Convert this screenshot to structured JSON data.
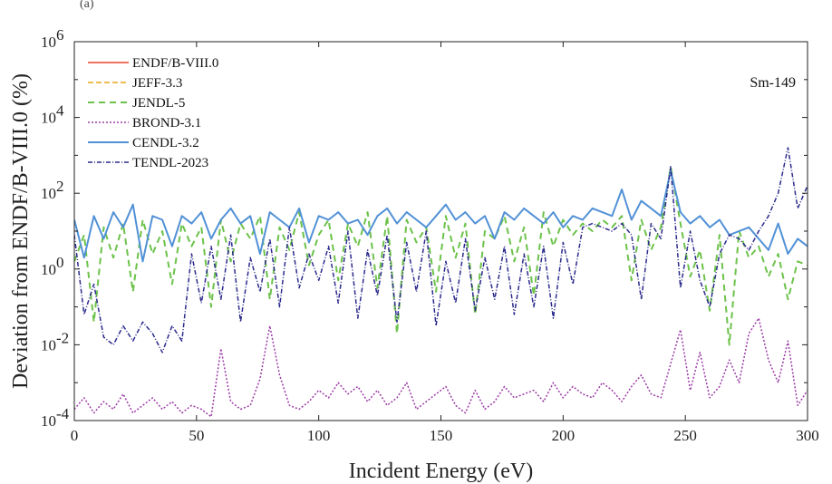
{
  "chart_data": {
    "type": "line",
    "panel_label": "(a)",
    "annotation": "Sm-149",
    "xlabel": "Incident Energy (eV)",
    "ylabel": "Deviation from ENDF/B-VIII.0 (%)",
    "xlim": [
      0,
      300
    ],
    "ylim_log10": [
      -4,
      6
    ],
    "yscale": "log",
    "x_ticks": [
      0,
      50,
      100,
      150,
      200,
      250,
      300
    ],
    "x_tick_labels": [
      "0",
      "50",
      "100",
      "150",
      "200",
      "250",
      "300"
    ],
    "y_ticks_log10": [
      -4,
      -2,
      0,
      2,
      4,
      6
    ],
    "y_tick_labels": [
      {
        "base": "10",
        "exp": "-4"
      },
      {
        "base": "10",
        "exp": "-2"
      },
      {
        "base": "10",
        "exp": "0"
      },
      {
        "base": "10",
        "exp": "2"
      },
      {
        "base": "10",
        "exp": "4"
      },
      {
        "base": "10",
        "exp": "6"
      }
    ],
    "legend_position": "top-left",
    "series": [
      {
        "name": "ENDF/B-VIII.0",
        "color": "#e8432e",
        "dash": "solid",
        "width": 1.5,
        "x": [],
        "y_log10": []
      },
      {
        "name": "JEFF-3.3",
        "color": "#e6a817",
        "dash": "6,3",
        "width": 1.5,
        "x": [],
        "y_log10": []
      },
      {
        "name": "JENDL-5",
        "color": "#6cc24a",
        "dash": "7,5",
        "width": 2,
        "x": [
          0,
          4,
          8,
          12,
          16,
          20,
          24,
          28,
          32,
          36,
          40,
          44,
          48,
          52,
          56,
          60,
          64,
          68,
          72,
          76,
          80,
          84,
          88,
          92,
          96,
          100,
          104,
          108,
          112,
          116,
          120,
          124,
          128,
          132,
          136,
          140,
          144,
          148,
          152,
          156,
          160,
          164,
          168,
          172,
          176,
          180,
          184,
          188,
          192,
          196,
          200,
          204,
          208,
          212,
          216,
          220,
          224,
          228,
          232,
          236,
          240,
          244,
          248,
          252,
          256,
          260,
          264,
          268,
          272,
          276,
          280,
          284,
          288,
          292,
          296,
          300
        ],
        "y_log10": [
          0.2,
          0.9,
          -1.4,
          1.1,
          0.3,
          1.2,
          -0.6,
          1.3,
          0.4,
          1.0,
          -0.4,
          1.2,
          0.6,
          1.1,
          -1.0,
          1.3,
          0.2,
          1.2,
          0.8,
          1.4,
          -0.8,
          1.1,
          0.5,
          1.5,
          0.1,
          0.9,
          1.3,
          -0.3,
          1.2,
          0.6,
          1.5,
          -0.5,
          1.4,
          -1.7,
          1.3,
          0.7,
          1.1,
          -0.6,
          1.4,
          0.3,
          1.2,
          -1.2,
          1.0,
          0.8,
          1.4,
          0.2,
          1.1,
          -0.7,
          1.5,
          0.6,
          1.3,
          0.9,
          1.2,
          1.0,
          1.3,
          1.1,
          1.4,
          -0.3,
          1.3,
          0.5,
          1.1,
          2.7,
          1.2,
          -0.2,
          0.5,
          -1.1,
          0.9,
          -2.0,
          1.0,
          0.3,
          0.6,
          -0.2,
          0.4,
          -0.8,
          0.2,
          0.1
        ]
      },
      {
        "name": "BROND-3.1",
        "color": "#9b3ba6",
        "dash": "2,2",
        "width": 1.5,
        "x": [
          0,
          4,
          8,
          12,
          16,
          20,
          24,
          28,
          32,
          36,
          40,
          44,
          48,
          52,
          56,
          60,
          64,
          68,
          72,
          76,
          80,
          84,
          88,
          92,
          96,
          100,
          104,
          108,
          112,
          116,
          120,
          124,
          128,
          132,
          136,
          140,
          144,
          148,
          152,
          156,
          160,
          164,
          168,
          172,
          176,
          180,
          184,
          188,
          192,
          196,
          200,
          204,
          208,
          212,
          216,
          220,
          224,
          228,
          232,
          236,
          240,
          244,
          248,
          252,
          256,
          260,
          264,
          268,
          272,
          276,
          280,
          284,
          288,
          292,
          296,
          300
        ],
        "y_log10": [
          -3.7,
          -3.4,
          -3.8,
          -3.5,
          -3.7,
          -3.3,
          -3.8,
          -3.6,
          -3.4,
          -3.7,
          -3.5,
          -3.8,
          -3.6,
          -3.7,
          -3.9,
          -2.1,
          -3.5,
          -3.7,
          -3.6,
          -2.9,
          -1.5,
          -2.8,
          -3.6,
          -3.7,
          -3.5,
          -3.2,
          -3.4,
          -3.0,
          -3.3,
          -3.1,
          -3.5,
          -3.2,
          -3.6,
          -3.4,
          -3.0,
          -3.7,
          -3.5,
          -3.3,
          -3.1,
          -3.6,
          -3.8,
          -3.2,
          -3.7,
          -3.5,
          -3.1,
          -3.4,
          -3.3,
          -3.2,
          -3.5,
          -3.0,
          -3.4,
          -3.1,
          -3.3,
          -3.4,
          -3.0,
          -3.2,
          -3.5,
          -3.1,
          -2.8,
          -3.3,
          -3.4,
          -2.5,
          -1.6,
          -3.2,
          -2.2,
          -3.4,
          -3.1,
          -2.4,
          -3.0,
          -1.7,
          -1.3,
          -2.4,
          -3.0,
          -1.9,
          -3.6,
          -3.2
        ]
      },
      {
        "name": "CENDL-3.2",
        "color": "#5191d6",
        "dash": "solid",
        "width": 2,
        "x": [
          0,
          4,
          8,
          12,
          16,
          20,
          24,
          28,
          32,
          36,
          40,
          44,
          48,
          52,
          56,
          60,
          64,
          68,
          72,
          76,
          80,
          84,
          88,
          92,
          96,
          100,
          104,
          108,
          112,
          116,
          120,
          124,
          128,
          132,
          136,
          140,
          144,
          148,
          152,
          156,
          160,
          164,
          168,
          172,
          176,
          180,
          184,
          188,
          192,
          196,
          200,
          204,
          208,
          212,
          216,
          220,
          224,
          228,
          232,
          236,
          240,
          244,
          248,
          252,
          256,
          260,
          264,
          268,
          272,
          276,
          280,
          284,
          288,
          292,
          296,
          300
        ],
        "y_log10": [
          1.3,
          0.3,
          1.4,
          0.8,
          1.5,
          1.1,
          1.7,
          0.2,
          1.4,
          1.3,
          0.6,
          1.4,
          1.2,
          1.5,
          0.8,
          1.3,
          1.6,
          1.2,
          1.4,
          0.4,
          1.5,
          1.3,
          1.1,
          1.6,
          0.7,
          1.4,
          1.3,
          1.5,
          1.2,
          1.3,
          0.9,
          1.4,
          1.6,
          1.2,
          1.5,
          1.3,
          1.1,
          1.4,
          1.7,
          1.3,
          1.5,
          1.2,
          1.4,
          0.8,
          1.5,
          1.3,
          1.6,
          1.4,
          1.2,
          1.5,
          1.1,
          1.4,
          1.3,
          1.6,
          1.5,
          1.4,
          2.1,
          1.3,
          1.8,
          1.6,
          1.4,
          2.6,
          1.5,
          1.2,
          1.4,
          1.1,
          1.3,
          0.9,
          1.0,
          1.1,
          0.8,
          0.5,
          1.2,
          0.4,
          0.8,
          0.6
        ]
      },
      {
        "name": "TENDL-2023",
        "color": "#2c2b8c",
        "dash": "5,2,1,2",
        "width": 1.5,
        "x": [
          0,
          4,
          8,
          12,
          16,
          20,
          24,
          28,
          32,
          36,
          40,
          44,
          48,
          52,
          56,
          60,
          64,
          68,
          72,
          76,
          80,
          84,
          88,
          92,
          96,
          100,
          104,
          108,
          112,
          116,
          120,
          124,
          128,
          132,
          136,
          140,
          144,
          148,
          152,
          156,
          160,
          164,
          168,
          172,
          176,
          180,
          184,
          188,
          192,
          196,
          200,
          204,
          208,
          212,
          216,
          220,
          224,
          228,
          232,
          236,
          240,
          244,
          248,
          252,
          256,
          260,
          264,
          268,
          272,
          276,
          280,
          284,
          288,
          292,
          296,
          300
        ],
        "y_log10": [
          0.9,
          -1.2,
          -0.4,
          -1.8,
          -2.0,
          -1.5,
          -1.9,
          -1.4,
          -1.7,
          -2.2,
          -1.5,
          -1.9,
          0.4,
          -0.9,
          0.6,
          -0.8,
          0.9,
          -1.4,
          0.3,
          -0.6,
          0.8,
          -1.0,
          1.1,
          -0.5,
          0.4,
          -0.3,
          0.6,
          -0.9,
          1.0,
          -1.3,
          0.5,
          -0.7,
          0.9,
          -1.4,
          0.7,
          -0.6,
          1.0,
          -1.5,
          0.2,
          -0.9,
          0.8,
          -1.1,
          0.3,
          -0.8,
          0.6,
          -1.2,
          0.4,
          -1.0,
          0.6,
          -1.3,
          0.7,
          -0.4,
          1.1,
          1.2,
          1.1,
          1.0,
          1.2,
          0.9,
          -0.8,
          1.2,
          0.8,
          2.7,
          -0.5,
          1.0,
          -0.3,
          -1.0,
          0.4,
          0.9,
          0.8,
          0.5,
          1.0,
          1.4,
          2.0,
          3.2,
          1.6,
          2.2
        ]
      }
    ]
  }
}
